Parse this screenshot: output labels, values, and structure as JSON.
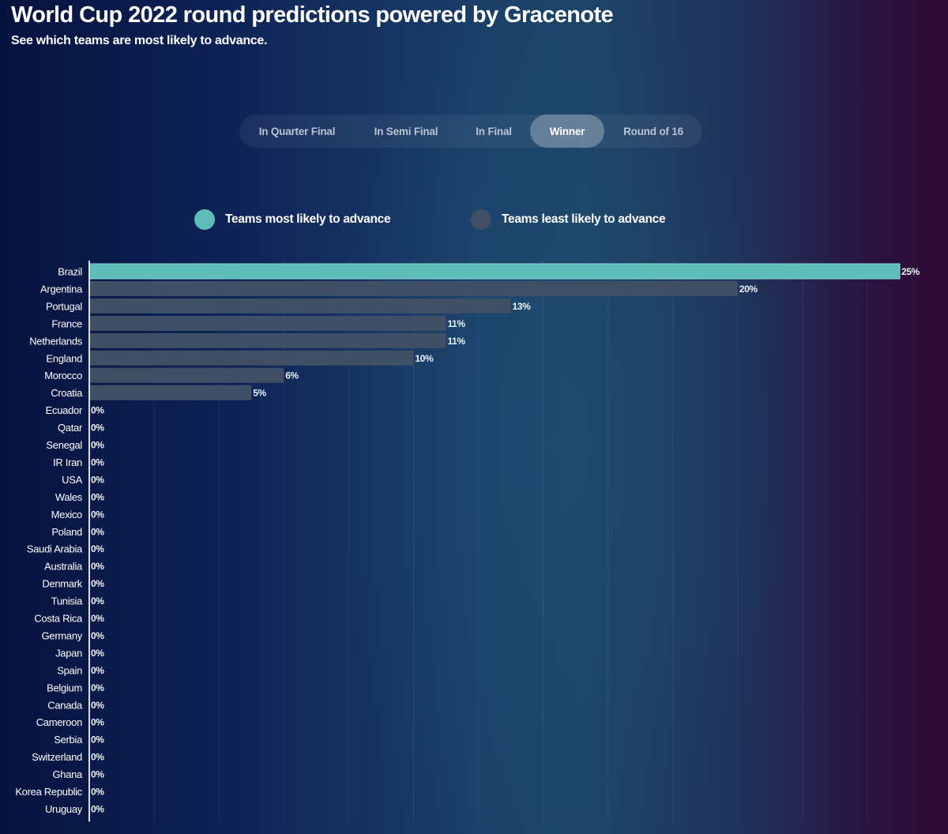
{
  "header": {
    "title": "World Cup 2022 round predictions powered by Gracenote",
    "subtitle": "See which teams are most likely to advance."
  },
  "tabs": [
    {
      "label": "In Quarter Final",
      "active": false
    },
    {
      "label": "In Semi Final",
      "active": false
    },
    {
      "label": "In Final",
      "active": false
    },
    {
      "label": "Winner",
      "active": true
    },
    {
      "label": "Round of 16",
      "active": false
    }
  ],
  "legend": [
    {
      "label": "Teams most likely to advance",
      "color": "#5ebcb8"
    },
    {
      "label": "Teams least likely to advance",
      "color": "#3f4f66"
    }
  ],
  "colors": {
    "highlight_bar": "#5ebcb8",
    "normal_bar": "#3f4f66",
    "axis": "#d9dde6",
    "gridline": "rgba(255,255,255,0.07)",
    "text": "#ffffff"
  },
  "chart_data": {
    "type": "bar",
    "orientation": "horizontal",
    "title": "World Cup 2022 round predictions powered by Gracenote",
    "subtitle": "See which teams are most likely to advance.",
    "xlabel": "",
    "ylabel": "",
    "value_suffix": "%",
    "xlim": [
      0,
      25
    ],
    "grid": true,
    "grid_step": 2,
    "legend_position": "top-center",
    "highlight_count": 1,
    "categories": [
      "Brazil",
      "Argentina",
      "Portugal",
      "France",
      "Netherlands",
      "England",
      "Morocco",
      "Croatia",
      "Ecuador",
      "Qatar",
      "Senegal",
      "IR Iran",
      "USA",
      "Wales",
      "Mexico",
      "Poland",
      "Saudi Arabia",
      "Australia",
      "Denmark",
      "Tunisia",
      "Costa Rica",
      "Germany",
      "Japan",
      "Spain",
      "Belgium",
      "Canada",
      "Cameroon",
      "Serbia",
      "Switzerland",
      "Ghana",
      "Korea Republic",
      "Uruguay"
    ],
    "values": [
      25,
      20,
      13,
      11,
      11,
      10,
      6,
      5,
      0,
      0,
      0,
      0,
      0,
      0,
      0,
      0,
      0,
      0,
      0,
      0,
      0,
      0,
      0,
      0,
      0,
      0,
      0,
      0,
      0,
      0,
      0,
      0
    ]
  }
}
